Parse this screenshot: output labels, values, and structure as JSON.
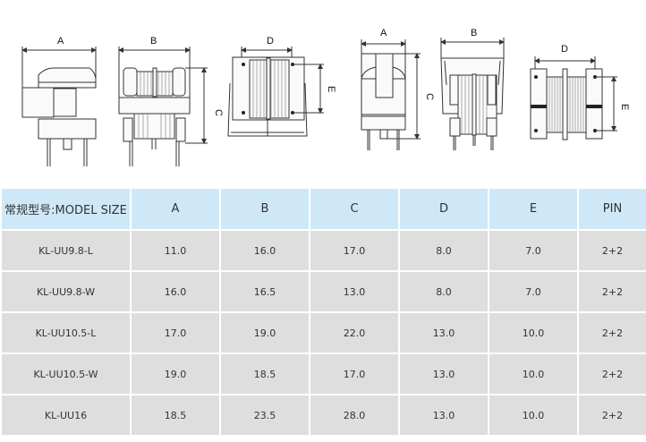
{
  "drawings": {
    "labels": {
      "A": "A",
      "B": "B",
      "C": "C",
      "D": "D",
      "E": "E"
    }
  },
  "table": {
    "headers": [
      "常规型号:MODEL SIZE",
      "A",
      "B",
      "C",
      "D",
      "E",
      "PIN"
    ],
    "rows": [
      [
        "KL-UU9.8-L",
        "11.0",
        "16.0",
        "17.0",
        "8.0",
        "7.0",
        "2+2"
      ],
      [
        "KL-UU9.8-W",
        "16.0",
        "16.5",
        "13.0",
        "8.0",
        "7.0",
        "2+2"
      ],
      [
        "KL-UU10.5-L",
        "17.0",
        "19.0",
        "22.0",
        "13.0",
        "10.0",
        "2+2"
      ],
      [
        "KL-UU10.5-W",
        "19.0",
        "18.5",
        "17.0",
        "13.0",
        "10.0",
        "2+2"
      ],
      [
        "KL-UU16",
        "18.5",
        "23.5",
        "28.0",
        "13.0",
        "10.0",
        "2+2"
      ]
    ]
  },
  "colors": {
    "header_bg": "#cfe8f8",
    "row_bg": "#dedede"
  }
}
